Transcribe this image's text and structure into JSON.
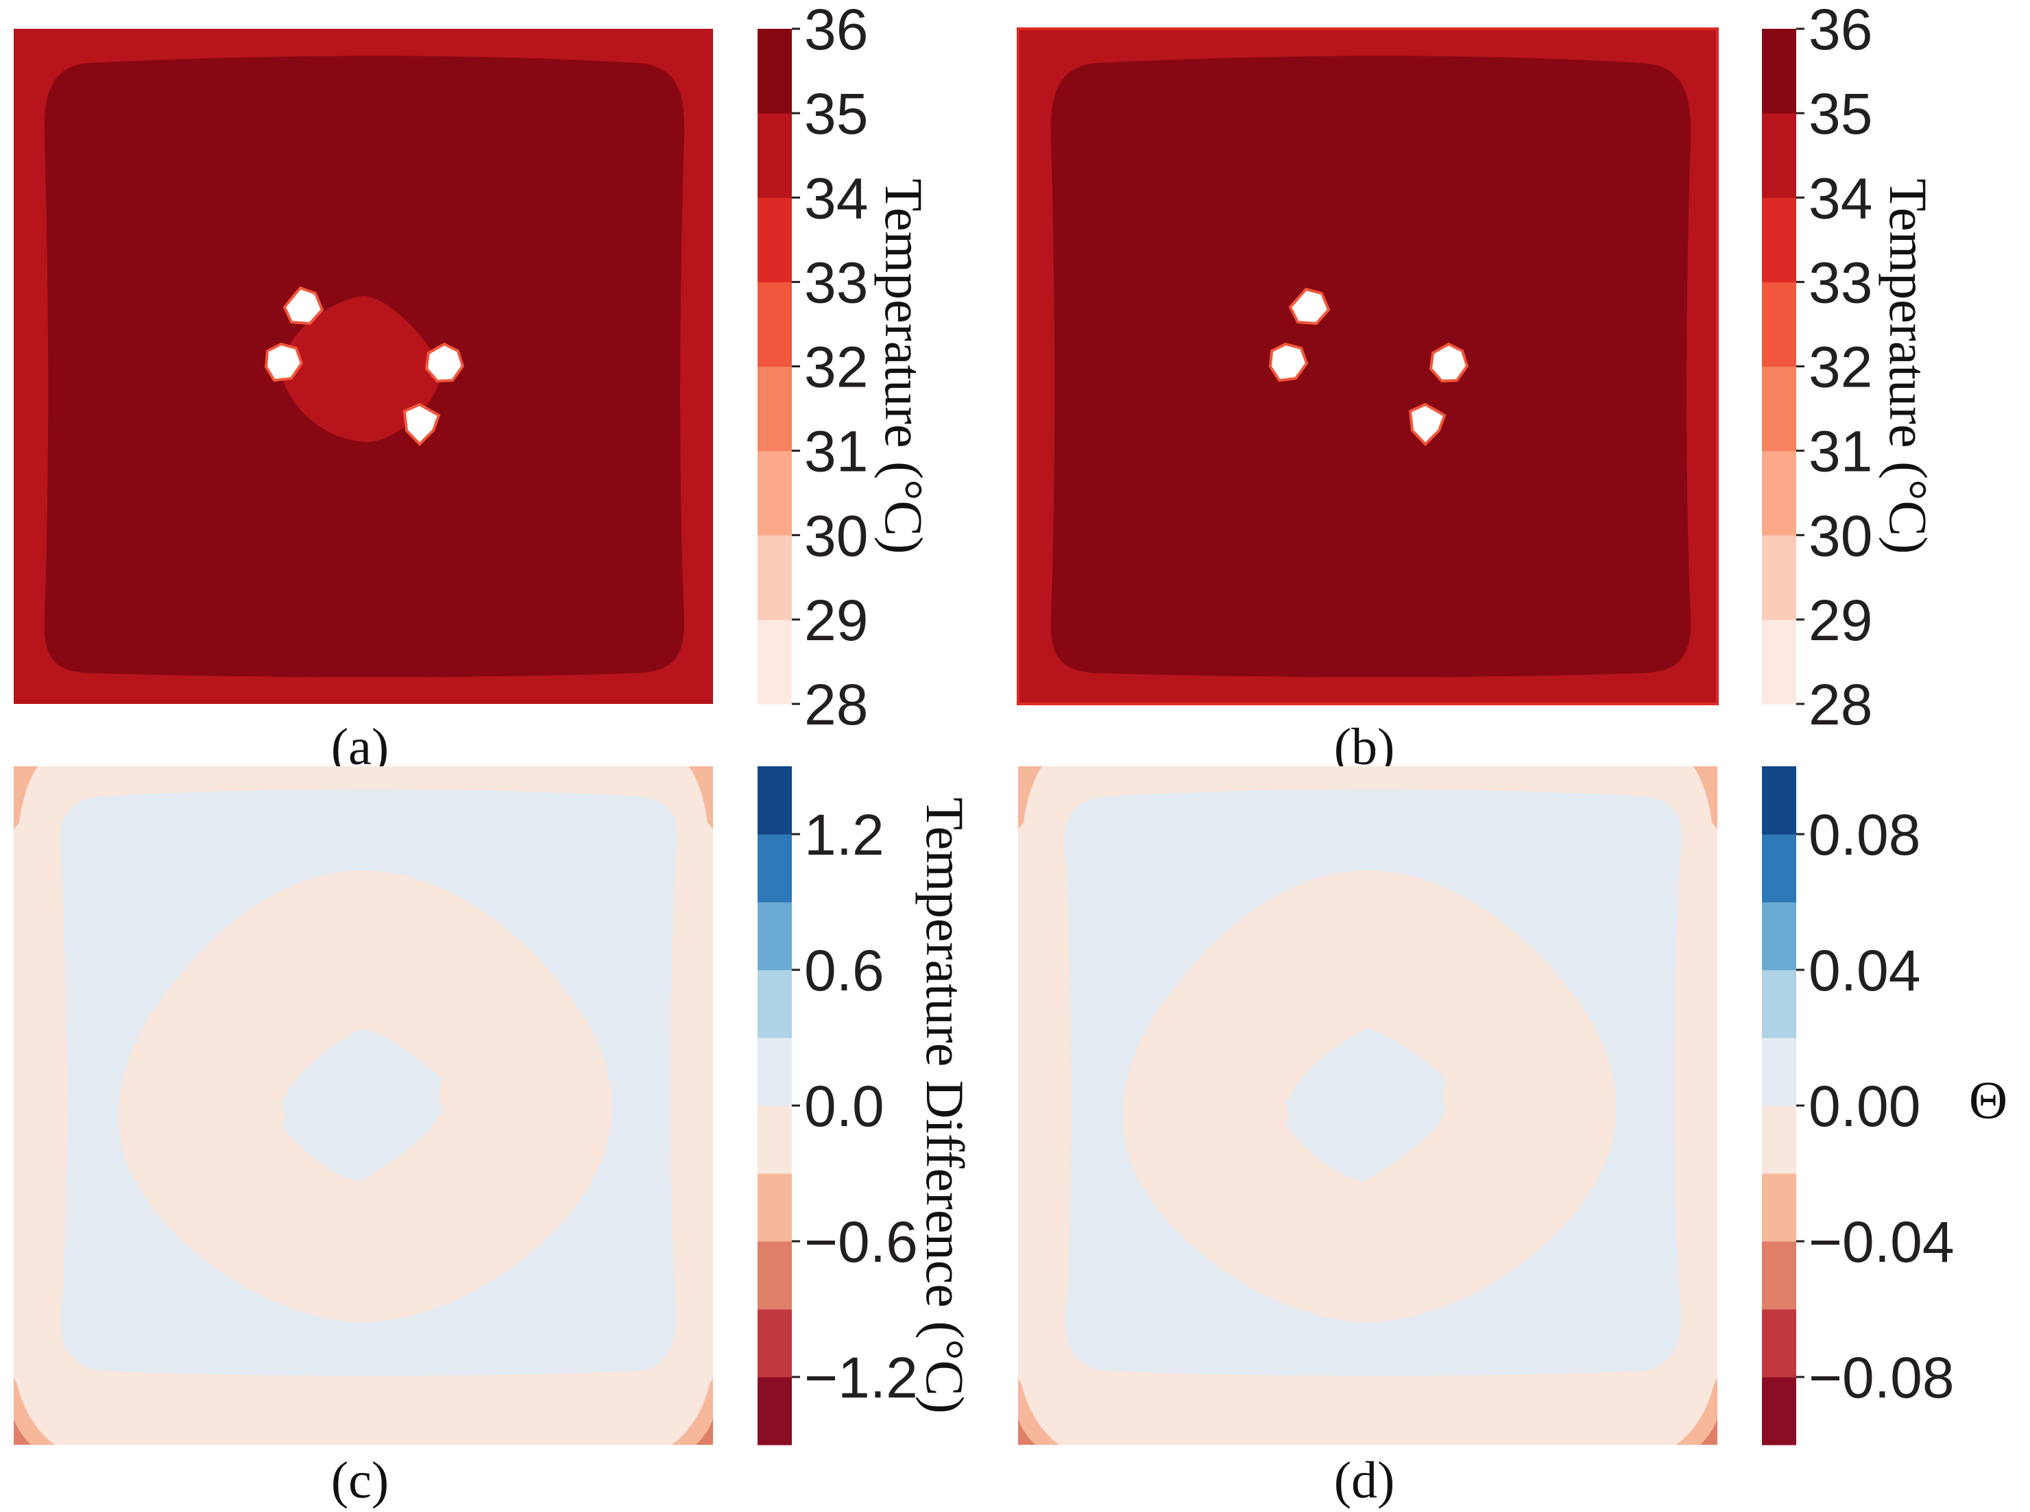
{
  "figure": {
    "panels": [
      {
        "id": "a",
        "caption": "(a)"
      },
      {
        "id": "b",
        "caption": "(b)"
      },
      {
        "id": "c",
        "caption": "(c)"
      },
      {
        "id": "d",
        "caption": "(d)"
      }
    ]
  },
  "chart_data": [
    {
      "type": "heatmap",
      "panel": "(a)",
      "colorbar_label": "Temperature (°C)",
      "colorbar_min": 28,
      "colorbar_max": 36,
      "colorbar_ticks": [
        "28",
        "29",
        "30",
        "31",
        "32",
        "33",
        "34",
        "35",
        "36"
      ],
      "levels": [
        {
          "range": [
            28,
            29
          ],
          "color": "#fde9e1"
        },
        {
          "range": [
            29,
            30
          ],
          "color": "#fbcdb9"
        },
        {
          "range": [
            30,
            31
          ],
          "color": "#fba989"
        },
        {
          "range": [
            31,
            32
          ],
          "color": "#f7825f"
        },
        {
          "range": [
            32,
            33
          ],
          "color": "#f1573c"
        },
        {
          "range": [
            33,
            34
          ],
          "color": "#dd2a25"
        },
        {
          "range": [
            34,
            35
          ],
          "color": "#b8141b"
        },
        {
          "range": [
            35,
            36
          ],
          "color": "#870812"
        }
      ],
      "field": {
        "outer_band_level": [
          34,
          35
        ],
        "interior_level": [
          35,
          36
        ],
        "center_patch_level": [
          34,
          35
        ],
        "sources": 4
      }
    },
    {
      "type": "heatmap",
      "panel": "(b)",
      "colorbar_label": "Temperature (°C)",
      "colorbar_min": 28,
      "colorbar_max": 36,
      "colorbar_ticks": [
        "28",
        "29",
        "30",
        "31",
        "32",
        "33",
        "34",
        "35",
        "36"
      ],
      "levels": [
        {
          "range": [
            28,
            29
          ],
          "color": "#fde9e1"
        },
        {
          "range": [
            29,
            30
          ],
          "color": "#fbcdb9"
        },
        {
          "range": [
            30,
            31
          ],
          "color": "#fba989"
        },
        {
          "range": [
            31,
            32
          ],
          "color": "#f7825f"
        },
        {
          "range": [
            32,
            33
          ],
          "color": "#f1573c"
        },
        {
          "range": [
            33,
            34
          ],
          "color": "#dd2a25"
        },
        {
          "range": [
            34,
            35
          ],
          "color": "#b8141b"
        },
        {
          "range": [
            35,
            36
          ],
          "color": "#870812"
        }
      ],
      "field": {
        "outer_band_level": [
          34,
          35
        ],
        "interior_level": [
          35,
          36
        ],
        "sources": 4
      }
    },
    {
      "type": "heatmap",
      "panel": "(c)",
      "colorbar_label": "Temperature Difference (°C)",
      "colorbar_min": -1.5,
      "colorbar_max": 1.5,
      "colorbar_ticks": [
        "−1.2",
        "−0.6",
        "0.0",
        "0.6",
        "1.2"
      ],
      "colorbar_tick_values": [
        -1.2,
        -0.6,
        0.0,
        0.6,
        1.2
      ],
      "levels": [
        {
          "range": [
            -1.5,
            -1.2
          ],
          "color": "#8a0d24"
        },
        {
          "range": [
            -1.2,
            -0.9
          ],
          "color": "#c2383f"
        },
        {
          "range": [
            -0.9,
            -0.6
          ],
          "color": "#e07f68"
        },
        {
          "range": [
            -0.6,
            -0.3
          ],
          "color": "#f6b79a"
        },
        {
          "range": [
            -0.3,
            0.0
          ],
          "color": "#f9e6dd"
        },
        {
          "range": [
            0.0,
            0.3
          ],
          "color": "#e4ebf2"
        },
        {
          "range": [
            0.3,
            0.6
          ],
          "color": "#aed2e6"
        },
        {
          "range": [
            0.6,
            0.9
          ],
          "color": "#6aaad2"
        },
        {
          "range": [
            0.9,
            1.2
          ],
          "color": "#2f78b7"
        },
        {
          "range": [
            1.2,
            1.5
          ],
          "color": "#134887"
        }
      ],
      "field": {
        "outer_band_level": [
          -0.3,
          0.0
        ],
        "mid_ring_level": [
          0.0,
          0.3
        ],
        "inner_ring_level": [
          -0.3,
          0.0
        ],
        "center_level": [
          0.0,
          0.3
        ]
      }
    },
    {
      "type": "heatmap",
      "panel": "(d)",
      "colorbar_label": "Θ",
      "colorbar_min": -0.1,
      "colorbar_max": 0.1,
      "colorbar_ticks": [
        "−0.08",
        "−0.04",
        "0.00",
        "0.04",
        "0.08"
      ],
      "colorbar_tick_values": [
        -0.08,
        -0.04,
        0.0,
        0.04,
        0.08
      ],
      "levels": [
        {
          "range": [
            -0.1,
            -0.08
          ],
          "color": "#8a0d24"
        },
        {
          "range": [
            -0.08,
            -0.06
          ],
          "color": "#c2383f"
        },
        {
          "range": [
            -0.06,
            -0.04
          ],
          "color": "#e07f68"
        },
        {
          "range": [
            -0.04,
            -0.02
          ],
          "color": "#f6b79a"
        },
        {
          "range": [
            -0.02,
            0.0
          ],
          "color": "#f9e6dd"
        },
        {
          "range": [
            0.0,
            0.02
          ],
          "color": "#e4ebf2"
        },
        {
          "range": [
            0.02,
            0.04
          ],
          "color": "#aed2e6"
        },
        {
          "range": [
            0.04,
            0.06
          ],
          "color": "#6aaad2"
        },
        {
          "range": [
            0.06,
            0.08
          ],
          "color": "#2f78b7"
        },
        {
          "range": [
            0.08,
            0.1
          ],
          "color": "#134887"
        }
      ],
      "field": {
        "outer_band_level": [
          -0.02,
          0.0
        ],
        "mid_ring_level": [
          0.0,
          0.02
        ],
        "inner_ring_level": [
          -0.02,
          0.0
        ],
        "center_level": [
          0.0,
          0.02
        ]
      }
    }
  ]
}
